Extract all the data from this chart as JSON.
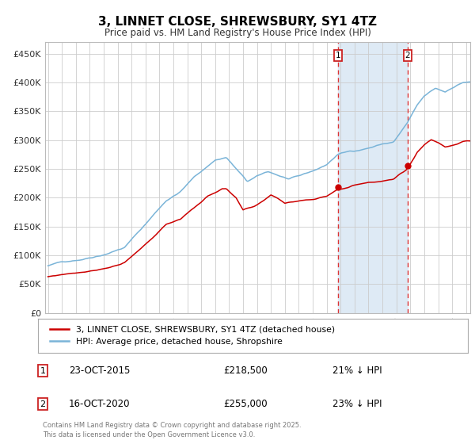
{
  "title": "3, LINNET CLOSE, SHREWSBURY, SY1 4TZ",
  "subtitle": "Price paid vs. HM Land Registry's House Price Index (HPI)",
  "legend_line1": "3, LINNET CLOSE, SHREWSBURY, SY1 4TZ (detached house)",
  "legend_line2": "HPI: Average price, detached house, Shropshire",
  "transaction1_date": "23-OCT-2015",
  "transaction1_price": 218500,
  "transaction1_label": "21% ↓ HPI",
  "transaction2_date": "16-OCT-2020",
  "transaction2_price": 255000,
  "transaction2_label": "23% ↓ HPI",
  "hpi_color": "#7ab4d8",
  "price_color": "#cc0000",
  "bg_color": "#ffffff",
  "plot_bg_color": "#ffffff",
  "highlight_color": "#deeaf5",
  "grid_color": "#cccccc",
  "dashed_color": "#dd3333",
  "footer": "Contains HM Land Registry data © Crown copyright and database right 2025.\nThis data is licensed under the Open Government Licence v3.0.",
  "ylim": [
    0,
    470000
  ],
  "yticks": [
    0,
    50000,
    100000,
    150000,
    200000,
    250000,
    300000,
    350000,
    400000,
    450000
  ],
  "start_year": 1995,
  "end_year": 2025,
  "transaction1_year": 2015.8,
  "transaction2_year": 2020.8,
  "hpi_keypoints": [
    [
      1995.0,
      82000
    ],
    [
      1996.0,
      88000
    ],
    [
      1997.5,
      95000
    ],
    [
      1999.0,
      105000
    ],
    [
      2000.5,
      118000
    ],
    [
      2002.0,
      158000
    ],
    [
      2003.5,
      200000
    ],
    [
      2004.5,
      215000
    ],
    [
      2005.5,
      240000
    ],
    [
      2007.0,
      270000
    ],
    [
      2007.8,
      275000
    ],
    [
      2008.5,
      255000
    ],
    [
      2009.3,
      232000
    ],
    [
      2010.0,
      240000
    ],
    [
      2010.8,
      248000
    ],
    [
      2011.5,
      242000
    ],
    [
      2012.3,
      235000
    ],
    [
      2013.0,
      238000
    ],
    [
      2013.8,
      245000
    ],
    [
      2014.5,
      252000
    ],
    [
      2015.0,
      258000
    ],
    [
      2015.8,
      276000
    ],
    [
      2016.5,
      280000
    ],
    [
      2017.5,
      285000
    ],
    [
      2018.3,
      290000
    ],
    [
      2019.0,
      295000
    ],
    [
      2019.8,
      298000
    ],
    [
      2020.8,
      331000
    ],
    [
      2021.5,
      360000
    ],
    [
      2022.0,
      375000
    ],
    [
      2022.8,
      388000
    ],
    [
      2023.5,
      382000
    ],
    [
      2024.0,
      390000
    ],
    [
      2024.8,
      400000
    ]
  ],
  "price_keypoints": [
    [
      1995.0,
      63000
    ],
    [
      1996.0,
      67000
    ],
    [
      1997.5,
      73000
    ],
    [
      1999.0,
      80000
    ],
    [
      2000.5,
      90000
    ],
    [
      2002.0,
      120000
    ],
    [
      2003.5,
      155000
    ],
    [
      2004.5,
      165000
    ],
    [
      2005.5,
      185000
    ],
    [
      2006.5,
      205000
    ],
    [
      2007.5,
      218000
    ],
    [
      2007.8,
      217000
    ],
    [
      2008.5,
      200000
    ],
    [
      2009.0,
      178000
    ],
    [
      2009.8,
      184000
    ],
    [
      2010.5,
      195000
    ],
    [
      2011.0,
      205000
    ],
    [
      2011.5,
      200000
    ],
    [
      2012.0,
      192000
    ],
    [
      2012.8,
      195000
    ],
    [
      2013.5,
      198000
    ],
    [
      2014.3,
      200000
    ],
    [
      2015.0,
      205000
    ],
    [
      2015.8,
      218500
    ],
    [
      2016.5,
      222000
    ],
    [
      2017.3,
      228000
    ],
    [
      2018.0,
      232000
    ],
    [
      2019.0,
      235000
    ],
    [
      2019.8,
      238000
    ],
    [
      2020.8,
      255000
    ],
    [
      2021.5,
      285000
    ],
    [
      2022.0,
      298000
    ],
    [
      2022.5,
      307000
    ],
    [
      2023.0,
      302000
    ],
    [
      2023.5,
      295000
    ],
    [
      2024.0,
      298000
    ],
    [
      2024.8,
      305000
    ]
  ]
}
